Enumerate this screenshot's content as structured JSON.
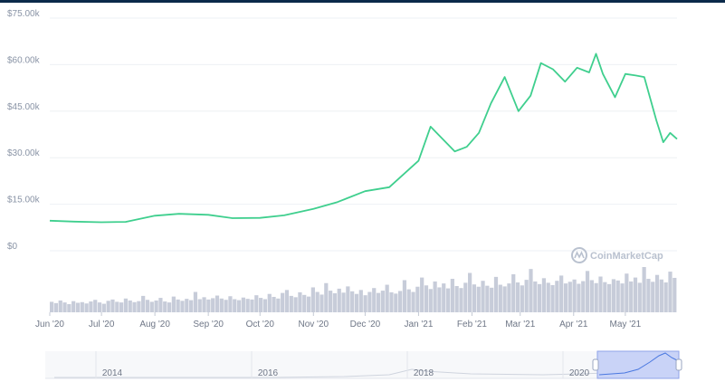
{
  "chart_data": {
    "type": "line",
    "title": "",
    "xlabel": "",
    "ylabel": "",
    "ylim": [
      0,
      75000
    ],
    "y_ticks": [
      {
        "value": 75000,
        "label": "$75.00k"
      },
      {
        "value": 60000,
        "label": "$60.00k"
      },
      {
        "value": 45000,
        "label": "$45.00k"
      },
      {
        "value": 30000,
        "label": "$30.00k"
      },
      {
        "value": 15000,
        "label": "$15.00k"
      },
      {
        "value": 0,
        "label": "$0"
      }
    ],
    "x_ticks": [
      {
        "date": "2020-06-01",
        "label": "Jun '20"
      },
      {
        "date": "2020-07-01",
        "label": "Jul '20"
      },
      {
        "date": "2020-08-01",
        "label": "Aug '20"
      },
      {
        "date": "2020-09-01",
        "label": "Sep '20"
      },
      {
        "date": "2020-10-01",
        "label": "Oct '20"
      },
      {
        "date": "2020-11-01",
        "label": "Nov '20"
      },
      {
        "date": "2020-12-01",
        "label": "Dec '20"
      },
      {
        "date": "2021-01-01",
        "label": "Jan '21"
      },
      {
        "date": "2021-02-01",
        "label": "Feb '21"
      },
      {
        "date": "2021-03-01",
        "label": "Mar '21"
      },
      {
        "date": "2021-04-01",
        "label": "Apr '21"
      },
      {
        "date": "2021-05-01",
        "label": "May '21"
      }
    ],
    "series": [
      {
        "x": [
          "2020-06-01",
          "2020-06-15",
          "2020-07-01",
          "2020-07-15",
          "2020-08-01",
          "2020-08-15",
          "2020-09-01",
          "2020-09-15",
          "2020-10-01",
          "2020-10-15",
          "2020-11-01",
          "2020-11-15",
          "2020-12-01",
          "2020-12-15",
          "2021-01-01",
          "2021-01-08",
          "2021-01-15",
          "2021-01-22",
          "2021-01-29",
          "2021-02-05",
          "2021-02-12",
          "2021-02-20",
          "2021-02-28",
          "2021-03-07",
          "2021-03-13",
          "2021-03-20",
          "2021-03-27",
          "2021-04-03",
          "2021-04-10",
          "2021-04-14",
          "2021-04-18",
          "2021-04-25",
          "2021-05-01",
          "2021-05-07",
          "2021-05-12",
          "2021-05-19",
          "2021-05-23",
          "2021-05-27",
          "2021-05-31"
        ],
        "values": [
          9700,
          9400,
          9200,
          9300,
          11300,
          11900,
          11600,
          10500,
          10600,
          11400,
          13500,
          15700,
          19200,
          20500,
          29000,
          40000,
          36000,
          32000,
          33500,
          38000,
          47500,
          56000,
          45000,
          50000,
          60500,
          58500,
          54500,
          59000,
          57500,
          63500,
          57000,
          49500,
          57000,
          56500,
          56000,
          42000,
          35000,
          38000,
          36000
        ]
      }
    ],
    "volume": [
      3.2,
      2.8,
      3.6,
      3.0,
      2.5,
      3.4,
      2.9,
      3.1,
      2.7,
      3.3,
      3.8,
      3.0,
      2.6,
      3.5,
      3.9,
      3.2,
      3.0,
      4.2,
      3.6,
      3.1,
      3.4,
      5.0,
      3.8,
      3.2,
      3.6,
      4.4,
      3.3,
      3.0,
      4.8,
      3.9,
      3.5,
      4.1,
      3.7,
      6.2,
      4.0,
      4.6,
      3.9,
      4.3,
      5.1,
      4.2,
      3.8,
      4.9,
      4.0,
      3.7,
      4.5,
      4.1,
      3.9,
      5.2,
      4.4,
      4.0,
      5.6,
      4.7,
      4.2,
      5.9,
      6.8,
      5.0,
      4.6,
      6.1,
      5.3,
      4.8,
      7.6,
      6.2,
      5.4,
      8.9,
      6.6,
      5.8,
      7.2,
      6.0,
      7.9,
      6.4,
      5.6,
      6.8,
      5.2,
      6.2,
      7.4,
      5.9,
      6.6,
      8.4,
      6.1,
      5.7,
      6.5,
      9.8,
      7.0,
      6.2,
      7.8,
      10.6,
      8.2,
      7.1,
      9.4,
      7.6,
      8.8,
      7.3,
      10.2,
      8.0,
      7.4,
      9.0,
      12.0,
      8.5,
      7.8,
      9.6,
      8.1,
      7.5,
      10.8,
      8.4,
      7.9,
      8.8,
      11.6,
      9.1,
      8.2,
      9.9,
      13.2,
      9.4,
      8.6,
      10.4,
      9.0,
      8.3,
      9.6,
      11.2,
      8.8,
      9.3,
      10.0,
      8.7,
      9.5,
      12.6,
      9.8,
      8.9,
      10.9,
      9.2,
      8.6,
      10.1,
      9.7,
      8.8,
      11.8,
      9.4,
      10.6,
      9.0,
      13.8,
      10.2,
      9.3,
      11.4,
      10.0,
      9.1,
      12.4,
      10.5
    ]
  },
  "brand": {
    "name": "CoinMarketCap"
  },
  "navigator": {
    "labels": [
      "2014",
      "2016",
      "2018",
      "2020"
    ],
    "colors": {
      "window": "#c9d3f7",
      "window_border": "#8fa3e8"
    }
  },
  "colors": {
    "line": "#3fcf8e",
    "volume": "#c7ccd9",
    "grid": "#eef0f4",
    "topbar": "#0b2a4a"
  }
}
